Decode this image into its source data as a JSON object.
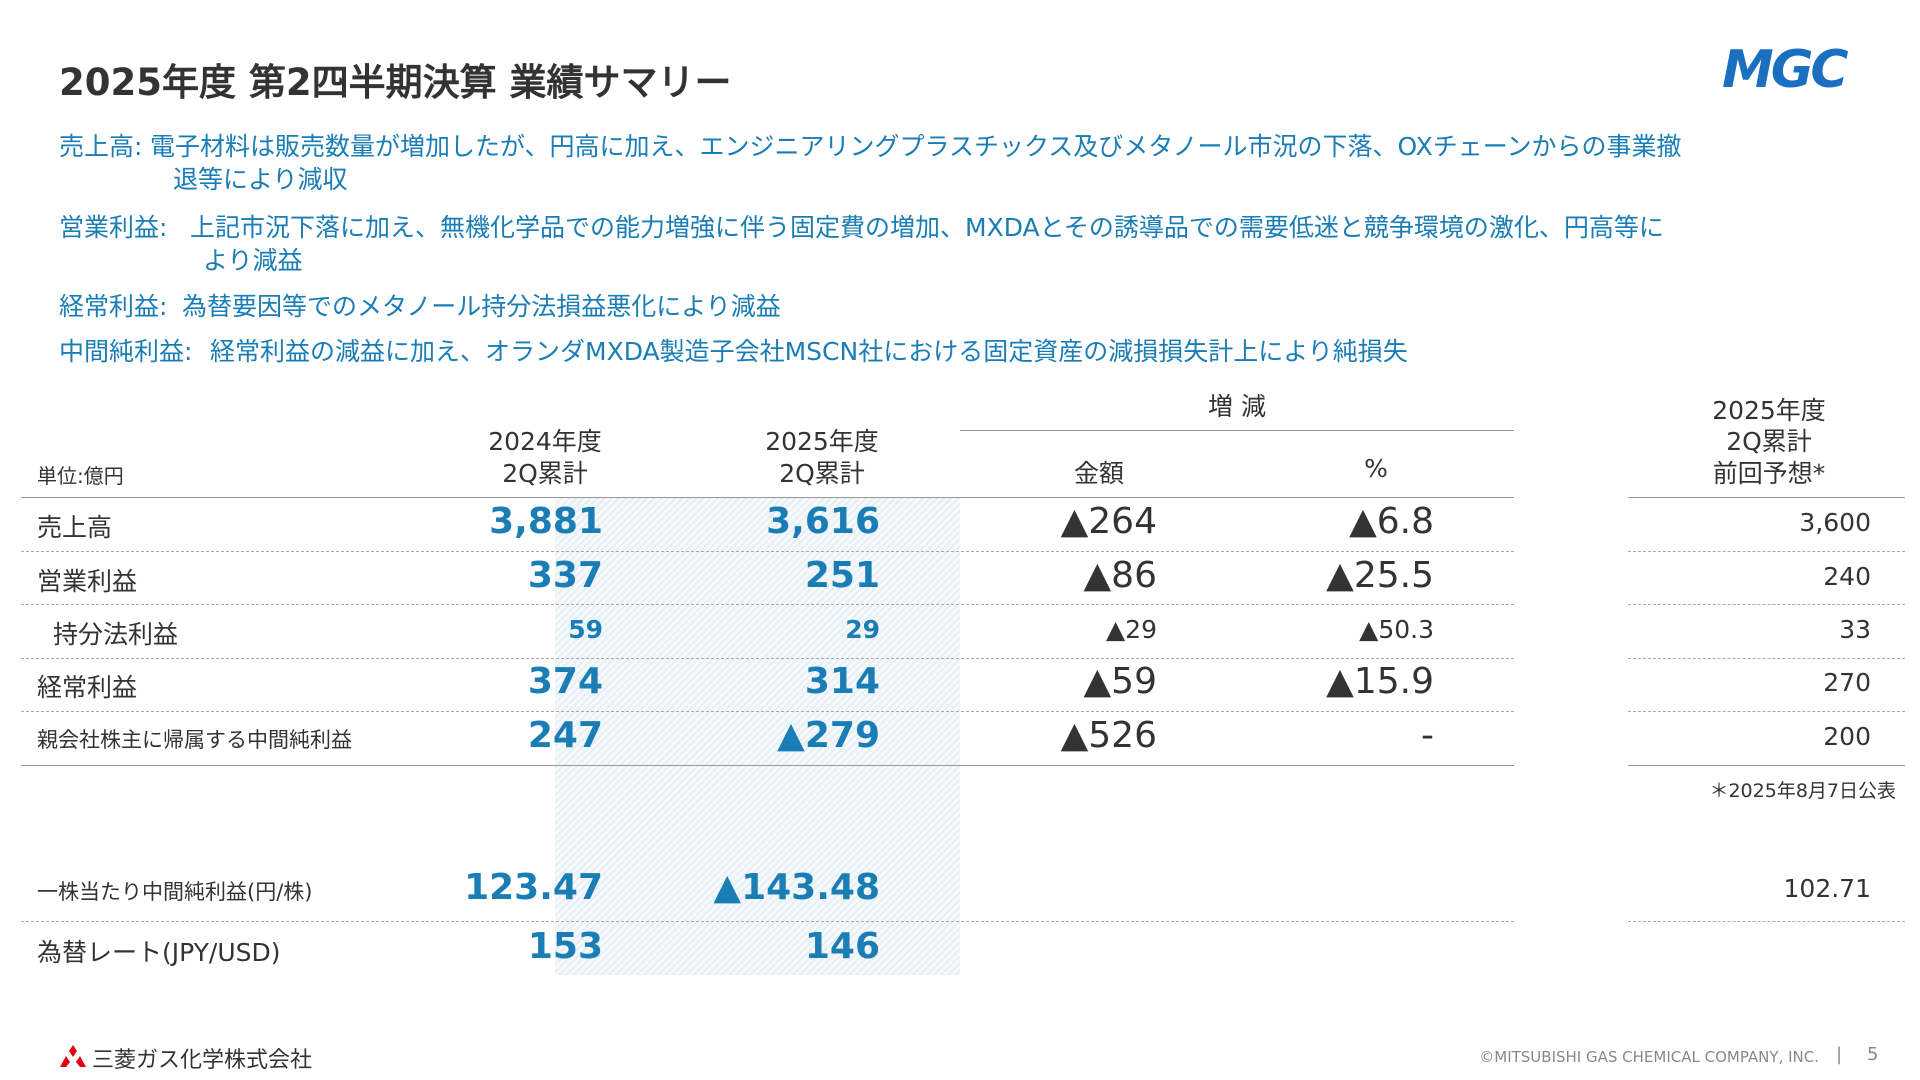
{
  "header": {
    "title": "2025年度 第2四半期決算 業績サマリー",
    "logo": "MGC"
  },
  "bullets": [
    {
      "label": "売上高:",
      "text": [
        "電子材料は販売数量が増加したが、円高に加え、エンジニアリングプラスチックス及びメタノール市況の下落、OXチェーンからの事業撤",
        "退等により減収"
      ]
    },
    {
      "label": "営業利益:",
      "text": [
        "上記市況下落に加え、無機化学品での能力増強に伴う固定費の増加、MXDAとその誘導品での需要低迷と競争環境の激化、円高等に",
        "より減益"
      ]
    },
    {
      "label": "経常利益:",
      "text": [
        "為替要因等でのメタノール持分法損益悪化により減益"
      ]
    },
    {
      "label": "中間純利益:",
      "text": [
        "経常利益の減益に加え、オランダMXDA製造子会社MSCN社における固定資産の減損損失計上により純損失"
      ]
    }
  ],
  "table": {
    "unit": "単位:億円",
    "change_header": "増 減",
    "columns": {
      "y2024": [
        "2024年度",
        "2Q累計"
      ],
      "y2025": [
        "2025年度",
        "2Q累計"
      ],
      "amount": [
        "金額"
      ],
      "pct": [
        "%"
      ],
      "forecast": [
        "2025年度",
        "2Q累計",
        "前回予想*"
      ]
    },
    "rows": [
      {
        "label": "売上高",
        "y2024": "3,881",
        "y2025": "3,616",
        "amount": "▲264",
        "pct": "▲6.8",
        "forecast": "3,600"
      },
      {
        "label": "営業利益",
        "y2024": "337",
        "y2025": "251",
        "amount": "▲86",
        "pct": "▲25.5",
        "forecast": "240"
      },
      {
        "label": "持分法利益",
        "y2024": "59",
        "y2025": "29",
        "amount": "▲29",
        "pct": "▲50.3",
        "forecast": "33"
      },
      {
        "label": "経常利益",
        "y2024": "374",
        "y2025": "314",
        "amount": "▲59",
        "pct": "▲15.9",
        "forecast": "270"
      },
      {
        "label": "親会社株主に帰属する中間純利益",
        "y2024": "247",
        "y2025": "▲279",
        "amount": "▲526",
        "pct": "-",
        "forecast": "200"
      }
    ],
    "note": "＊2025年8月7日公表",
    "extra_rows": [
      {
        "label": "一株当たり中間純利益(円/株)",
        "y2024": "123.47",
        "y2025": "▲143.48",
        "forecast": "102.71"
      },
      {
        "label": "為替レート(JPY/USD)",
        "y2024": "153",
        "y2025": "146"
      }
    ]
  },
  "footer": {
    "company": "三菱ガス化学株式会社",
    "copyright": "©MITSUBISHI GAS CHEMICAL COMPANY, INC.",
    "page": "5"
  }
}
